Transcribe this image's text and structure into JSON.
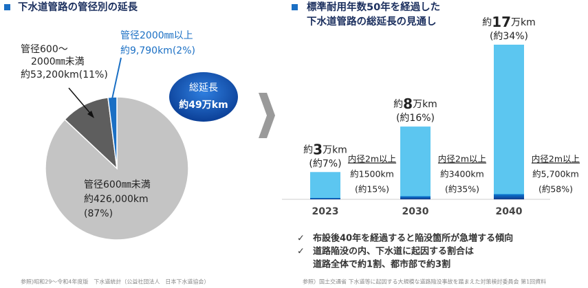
{
  "chart_data": [
    {
      "type": "pie",
      "title": "下水道管路の管径別の延長",
      "categories": [
        "管径600㎜未満",
        "管径600～2000㎜未満",
        "管径2000㎜以上"
      ],
      "length_labels": [
        "約426,000km",
        "約53,200km",
        "約9,790km"
      ],
      "values": [
        87,
        11,
        2
      ],
      "value_labels": [
        "(87%)",
        "(11%)",
        "(2%)"
      ],
      "colors": [
        "#c4c4c4",
        "#5e5e5e",
        "#1a6fc4"
      ],
      "annotations": [
        "総延長",
        "約49万km"
      ]
    },
    {
      "type": "bar",
      "title": [
        "標準耐用年数50年を経過した",
        "下水道管路の総延長の見通し"
      ],
      "categories": [
        "2023",
        "2030",
        "2040"
      ],
      "ylim": [
        0,
        17
      ],
      "y2lim": [
        0,
        170000
      ],
      "series": [
        {
          "values": [
            3,
            8,
            17
          ],
          "value_labels": [
            "約3万km",
            "約8万km",
            "約17万km"
          ],
          "shares": [
            7,
            16,
            34
          ],
          "share_labels": [
            "(約7%)",
            "(約16%)",
            "(約34%)"
          ],
          "color": "#5cc6f0"
        },
        {
          "name": "内径2m以上",
          "axis": "y2",
          "values": [
            1500,
            3400,
            5700
          ],
          "value_labels": [
            "約1500km",
            "約3400km",
            "約5,700km"
          ],
          "shares": [
            15,
            35,
            58
          ],
          "share_labels": [
            "(約15%)",
            "(約35%)",
            "(約58%)"
          ],
          "color": "#0b57ae"
        }
      ]
    }
  ],
  "notes": [
    "布設後40年を経過すると陥没箇所が急増する傾向",
    "道路陥没の内、下水道に起因する割合は",
    "道路全体で約1割、都市部で約3割"
  ],
  "sources": [
    "参照)昭和29～令和4年度版　下水道統計（公益社団法人　日本下水道協会）",
    "参照）国土交通省 下水道等に起因する大規模な道路陥没事故を踏まえた対策検討委員会 第1回資料"
  ]
}
